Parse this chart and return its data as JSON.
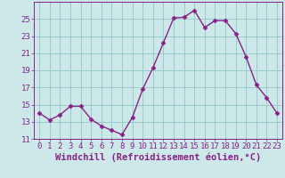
{
  "x": [
    0,
    1,
    2,
    3,
    4,
    5,
    6,
    7,
    8,
    9,
    10,
    11,
    12,
    13,
    14,
    15,
    16,
    17,
    18,
    19,
    20,
    21,
    22,
    23
  ],
  "y": [
    14.0,
    13.2,
    13.8,
    14.8,
    14.8,
    13.3,
    12.5,
    12.0,
    11.5,
    13.5,
    16.8,
    19.3,
    22.2,
    25.1,
    25.2,
    26.0,
    24.0,
    24.8,
    24.8,
    23.3,
    20.6,
    17.3,
    15.8,
    14.0
  ],
  "line_color": "#882288",
  "marker": "D",
  "marker_size": 2.5,
  "bg_color": "#cce8e8",
  "grid_color": "#99cccc",
  "xlabel": "Windchill (Refroidissement éolien,°C)",
  "xlabel_fontsize": 7.5,
  "xlim": [
    -0.5,
    23.5
  ],
  "ylim": [
    11,
    27
  ],
  "yticks": [
    11,
    13,
    15,
    17,
    19,
    21,
    23,
    25
  ],
  "xticks": [
    0,
    1,
    2,
    3,
    4,
    5,
    6,
    7,
    8,
    9,
    10,
    11,
    12,
    13,
    14,
    15,
    16,
    17,
    18,
    19,
    20,
    21,
    22,
    23
  ],
  "tick_fontsize": 6.5,
  "line_width": 1.0
}
